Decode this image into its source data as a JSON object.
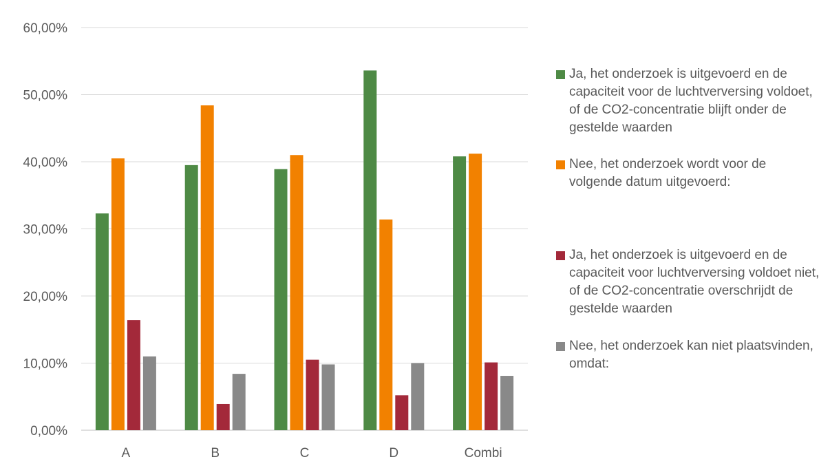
{
  "chart_data": {
    "type": "bar",
    "categories": [
      "A",
      "B",
      "C",
      "D",
      "Combi"
    ],
    "ylim": [
      0,
      0.6
    ],
    "yticks": [
      "0,00%",
      "10,00%",
      "20,00%",
      "30,00%",
      "40,00%",
      "50,00%",
      "60,00%"
    ],
    "grid": true,
    "legend_position": "right",
    "series": [
      {
        "name": "Ja, het onderzoek is uitgevoerd en de capaciteit voor de luchtverversing voldoet, of de CO2-concentratie blijft onder de gestelde waarden",
        "color": "#4e8a45",
        "values": [
          0.323,
          0.395,
          0.389,
          0.536,
          0.408
        ]
      },
      {
        "name": "Nee, het onderzoek wordt voor de volgende datum uitgevoerd:",
        "color": "#f28100",
        "values": [
          0.405,
          0.484,
          0.41,
          0.314,
          0.412
        ]
      },
      {
        "name": "Ja, het onderzoek is uitgevoerd en de capaciteit voor luchtverversing voldoet niet, of de CO2-concentratie overschrijdt de gestelde waarden",
        "color": "#a3293a",
        "values": [
          0.164,
          0.039,
          0.105,
          0.052,
          0.101
        ]
      },
      {
        "name": "Nee, het onderzoek kan niet plaatsvinden, omdat:",
        "color": "#898989",
        "values": [
          0.11,
          0.084,
          0.098,
          0.1,
          0.081
        ]
      }
    ]
  }
}
